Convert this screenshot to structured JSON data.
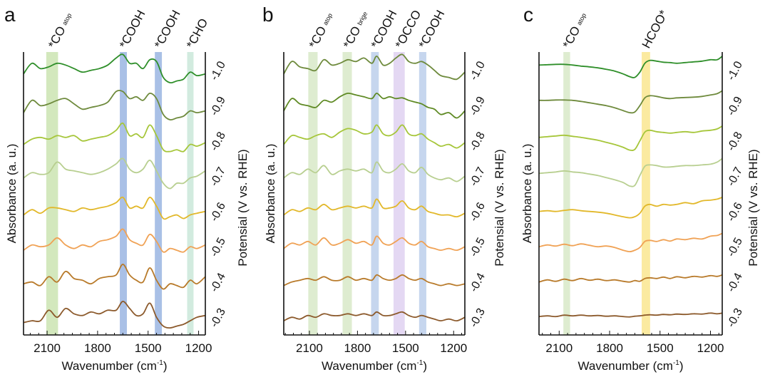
{
  "chart_data": [
    {
      "type": "line",
      "panel_letter": "a",
      "xlabel": "Wavenumber (cm",
      "xlabel_sup": "-1",
      "xlabel_end": ")",
      "ylabel": "Absorbance (a. u.)",
      "right_label": "Potensial (V vs. RHE)",
      "xlim": [
        2240,
        1160
      ],
      "xticks": [
        "2100",
        "1800",
        "1500",
        "1200"
      ],
      "bands": [
        {
          "label": "*CO",
          "sub": "atop",
          "center": 2070,
          "width": 70,
          "color": "#d3e8bd"
        },
        {
          "label": "*COOH",
          "sub": "",
          "center": 1647,
          "width": 42,
          "color": "#a9c0e6"
        },
        {
          "label": "*COOH",
          "sub": "",
          "center": 1439,
          "width": 42,
          "color": "#a9c0e6"
        },
        {
          "label": "*CHO",
          "sub": "",
          "center": 1249,
          "width": 38,
          "color": "#d2ebdf"
        }
      ],
      "x": [
        2240,
        2190,
        2140,
        2090,
        2040,
        1990,
        1940,
        1890,
        1840,
        1790,
        1740,
        1690,
        1650,
        1610,
        1570,
        1530,
        1490,
        1450,
        1410,
        1370,
        1330,
        1290,
        1250,
        1210,
        1160
      ],
      "series": [
        {
          "name": "-1.0",
          "color": "#2f8f2a",
          "values": [
            0.3,
            0.6,
            0.45,
            0.5,
            0.6,
            0.55,
            0.45,
            0.35,
            0.4,
            0.45,
            0.55,
            0.75,
            0.85,
            0.6,
            0.6,
            0.45,
            0.7,
            0.65,
            0.2,
            0.05,
            0.1,
            0.15,
            0.35,
            0.25,
            0.3
          ]
        },
        {
          "name": "-0.9",
          "color": "#6e8a3c",
          "values": [
            0.2,
            0.55,
            0.4,
            0.45,
            0.55,
            0.6,
            0.45,
            0.3,
            0.35,
            0.4,
            0.5,
            0.8,
            0.8,
            0.6,
            0.65,
            0.55,
            0.75,
            0.6,
            0.15,
            0.0,
            0.05,
            0.1,
            0.25,
            0.2,
            0.25
          ]
        },
        {
          "name": "-0.8",
          "color": "#a6c63a",
          "values": [
            0.3,
            0.45,
            0.5,
            0.45,
            0.55,
            0.5,
            0.55,
            0.4,
            0.45,
            0.5,
            0.55,
            0.7,
            0.9,
            0.55,
            0.6,
            0.5,
            0.85,
            0.55,
            0.15,
            0.1,
            0.15,
            0.1,
            0.3,
            0.25,
            0.35
          ]
        },
        {
          "name": "-0.7",
          "color": "#b8cf90",
          "values": [
            0.35,
            0.5,
            0.45,
            0.5,
            0.8,
            0.6,
            0.55,
            0.5,
            0.45,
            0.5,
            0.6,
            0.75,
            0.9,
            0.6,
            0.5,
            0.6,
            0.85,
            0.55,
            0.2,
            0.05,
            0.2,
            0.2,
            0.35,
            0.4,
            0.55
          ]
        },
        {
          "name": "-0.6",
          "color": "#e2b82a",
          "values": [
            0.3,
            0.45,
            0.35,
            0.5,
            0.5,
            0.45,
            0.4,
            0.5,
            0.45,
            0.5,
            0.55,
            0.65,
            0.8,
            0.5,
            0.55,
            0.5,
            0.8,
            0.55,
            0.2,
            0.25,
            0.3,
            0.2,
            0.3,
            0.35,
            0.4
          ]
        },
        {
          "name": "-0.5",
          "color": "#f0a255",
          "values": [
            0.3,
            0.45,
            0.4,
            0.45,
            0.65,
            0.45,
            0.35,
            0.45,
            0.4,
            0.55,
            0.6,
            0.7,
            0.9,
            0.6,
            0.5,
            0.45,
            0.75,
            0.55,
            0.25,
            0.35,
            0.3,
            0.25,
            0.4,
            0.35,
            0.45
          ]
        },
        {
          "name": "-0.4",
          "color": "#b87a2a",
          "values": [
            0.35,
            0.4,
            0.3,
            0.55,
            0.4,
            0.7,
            0.5,
            0.45,
            0.35,
            0.5,
            0.55,
            0.6,
            0.9,
            0.6,
            0.45,
            0.4,
            0.8,
            0.45,
            0.2,
            0.35,
            0.3,
            0.25,
            0.45,
            0.35,
            0.55
          ]
        },
        {
          "name": "-0.3",
          "color": "#8c5a2c",
          "values": [
            0.25,
            0.3,
            0.3,
            0.6,
            0.4,
            0.65,
            0.5,
            0.45,
            0.55,
            0.5,
            0.6,
            0.6,
            0.85,
            0.65,
            0.45,
            0.5,
            0.8,
            0.4,
            0.15,
            0.1,
            0.15,
            0.2,
            0.3,
            0.4,
            0.45
          ]
        }
      ]
    },
    {
      "type": "line",
      "panel_letter": "b",
      "xlabel": "Wavenumber (cm",
      "xlabel_sup": "-1",
      "xlabel_end": ")",
      "ylabel": "Absorbance (a. u.)",
      "right_label": "Potensial (V vs. RHE)",
      "xlim": [
        2260,
        1130
      ],
      "xticks": [
        "2100",
        "1800",
        "1500",
        "1200"
      ],
      "bands": [
        {
          "label": "*CO",
          "sub": "atop",
          "center": 2078,
          "width": 58,
          "color": "#deecd0"
        },
        {
          "label": "*CO",
          "sub": "brige",
          "center": 1864,
          "width": 58,
          "color": "#deecd0"
        },
        {
          "label": "*COOH",
          "sub": "",
          "center": 1691,
          "width": 48,
          "color": "#c6d6ee"
        },
        {
          "label": "*OCCO",
          "sub": "",
          "center": 1540,
          "width": 70,
          "color": "#e4d8f3"
        },
        {
          "label": "*COOH",
          "sub": "",
          "center": 1393,
          "width": 45,
          "color": "#c6d6ee"
        }
      ],
      "x": [
        2260,
        2210,
        2160,
        2110,
        2060,
        2010,
        1960,
        1910,
        1860,
        1810,
        1760,
        1710,
        1680,
        1640,
        1600,
        1560,
        1520,
        1480,
        1440,
        1400,
        1360,
        1320,
        1280,
        1230,
        1180,
        1130
      ],
      "series": [
        {
          "name": "-1.0",
          "color": "#6e8a3c",
          "values": [
            0.3,
            0.65,
            0.5,
            0.45,
            0.4,
            0.7,
            0.55,
            0.6,
            0.7,
            0.65,
            0.75,
            0.6,
            0.8,
            0.55,
            0.6,
            0.75,
            0.85,
            0.65,
            0.6,
            0.65,
            0.55,
            0.4,
            0.25,
            0.2,
            0.15,
            0.35
          ]
        },
        {
          "name": "-0.9",
          "color": "#5f8a24",
          "values": [
            0.25,
            0.6,
            0.45,
            0.4,
            0.35,
            0.55,
            0.5,
            0.65,
            0.75,
            0.7,
            0.65,
            0.6,
            0.75,
            0.6,
            0.65,
            0.6,
            0.62,
            0.55,
            0.5,
            0.45,
            0.35,
            0.3,
            0.15,
            0.2,
            0.05,
            0.25
          ]
        },
        {
          "name": "-0.8",
          "color": "#a6c63a",
          "values": [
            0.3,
            0.55,
            0.5,
            0.45,
            0.55,
            0.6,
            0.5,
            0.65,
            0.75,
            0.7,
            0.6,
            0.65,
            0.85,
            0.6,
            0.55,
            0.65,
            0.85,
            0.6,
            0.55,
            0.6,
            0.45,
            0.35,
            0.25,
            0.3,
            0.2,
            0.35
          ]
        },
        {
          "name": "-0.7",
          "color": "#b8cf90",
          "values": [
            0.35,
            0.5,
            0.45,
            0.6,
            0.5,
            0.7,
            0.45,
            0.55,
            0.6,
            0.55,
            0.6,
            0.5,
            0.8,
            0.55,
            0.5,
            0.6,
            0.75,
            0.55,
            0.5,
            0.65,
            0.45,
            0.35,
            0.3,
            0.35,
            0.25,
            0.4
          ]
        },
        {
          "name": "-0.6",
          "color": "#e2b82a",
          "values": [
            0.3,
            0.45,
            0.4,
            0.5,
            0.45,
            0.6,
            0.45,
            0.5,
            0.55,
            0.5,
            0.55,
            0.5,
            0.75,
            0.5,
            0.5,
            0.55,
            0.7,
            0.5,
            0.45,
            0.55,
            0.4,
            0.35,
            0.3,
            0.3,
            0.25,
            0.35
          ]
        },
        {
          "name": "-0.5",
          "color": "#f0a255",
          "values": [
            0.35,
            0.5,
            0.45,
            0.55,
            0.45,
            0.65,
            0.45,
            0.5,
            0.6,
            0.5,
            0.55,
            0.45,
            0.7,
            0.5,
            0.45,
            0.55,
            0.65,
            0.5,
            0.45,
            0.55,
            0.4,
            0.35,
            0.3,
            0.35,
            0.3,
            0.4
          ]
        },
        {
          "name": "-0.4",
          "color": "#b87a2a",
          "values": [
            0.3,
            0.4,
            0.45,
            0.5,
            0.45,
            0.55,
            0.45,
            0.45,
            0.55,
            0.45,
            0.5,
            0.45,
            0.6,
            0.5,
            0.45,
            0.5,
            0.6,
            0.5,
            0.45,
            0.5,
            0.4,
            0.35,
            0.3,
            0.35,
            0.3,
            0.35
          ]
        },
        {
          "name": "-0.3",
          "color": "#8c5a2c",
          "values": [
            0.3,
            0.4,
            0.35,
            0.45,
            0.4,
            0.5,
            0.45,
            0.45,
            0.5,
            0.45,
            0.5,
            0.45,
            0.55,
            0.45,
            0.45,
            0.5,
            0.55,
            0.45,
            0.4,
            0.45,
            0.4,
            0.35,
            0.3,
            0.35,
            0.3,
            0.4
          ]
        }
      ]
    },
    {
      "type": "line",
      "panel_letter": "c",
      "xlabel": "Wavenumber (cm",
      "xlabel_sup": "-1",
      "xlabel_end": ")",
      "ylabel": "Absorbance (a. u.)",
      "right_label": "Potensial (V vs. RHE)",
      "xlim": [
        2220,
        1130
      ],
      "xticks": [
        "2100",
        "1800",
        "1500",
        "1200"
      ],
      "bands": [
        {
          "label": "*CO",
          "sub": "atop",
          "center": 2055,
          "width": 40,
          "color": "#deecd0"
        },
        {
          "label": "HCOO*",
          "sub": "",
          "center": 1584,
          "width": 50,
          "color": "#fbeaa0"
        }
      ],
      "x": [
        2220,
        2170,
        2120,
        2070,
        2020,
        1970,
        1920,
        1870,
        1820,
        1770,
        1720,
        1680,
        1650,
        1620,
        1590,
        1560,
        1520,
        1480,
        1440,
        1400,
        1350,
        1300,
        1250,
        1200,
        1160,
        1130
      ],
      "series": [
        {
          "name": "-1.0",
          "color": "#2f8f2a",
          "values": [
            0.55,
            0.56,
            0.57,
            0.57,
            0.55,
            0.52,
            0.5,
            0.47,
            0.43,
            0.38,
            0.3,
            0.22,
            0.2,
            0.35,
            0.6,
            0.68,
            0.66,
            0.63,
            0.62,
            0.6,
            0.62,
            0.64,
            0.66,
            0.7,
            0.7,
            0.8
          ]
        },
        {
          "name": "-0.9",
          "color": "#6e8a3c",
          "values": [
            0.55,
            0.55,
            0.56,
            0.56,
            0.55,
            0.52,
            0.48,
            0.44,
            0.4,
            0.34,
            0.26,
            0.2,
            0.22,
            0.4,
            0.62,
            0.68,
            0.66,
            0.62,
            0.6,
            0.62,
            0.63,
            0.64,
            0.66,
            0.7,
            0.74,
            0.82
          ]
        },
        {
          "name": "-0.8",
          "color": "#a6c63a",
          "values": [
            0.5,
            0.52,
            0.54,
            0.56,
            0.53,
            0.5,
            0.46,
            0.42,
            0.36,
            0.3,
            0.22,
            0.14,
            0.16,
            0.4,
            0.65,
            0.7,
            0.66,
            0.64,
            0.62,
            0.64,
            0.66,
            0.64,
            0.68,
            0.7,
            0.74,
            0.82
          ]
        },
        {
          "name": "-0.7",
          "color": "#b8cf90",
          "values": [
            0.48,
            0.5,
            0.52,
            0.55,
            0.52,
            0.5,
            0.46,
            0.42,
            0.36,
            0.3,
            0.22,
            0.12,
            0.14,
            0.42,
            0.68,
            0.72,
            0.7,
            0.66,
            0.66,
            0.68,
            0.7,
            0.7,
            0.72,
            0.74,
            0.8,
            0.9
          ]
        },
        {
          "name": "-0.6",
          "color": "#e2b82a",
          "values": [
            0.4,
            0.42,
            0.4,
            0.43,
            0.45,
            0.42,
            0.4,
            0.38,
            0.35,
            0.3,
            0.25,
            0.22,
            0.25,
            0.35,
            0.55,
            0.6,
            0.55,
            0.6,
            0.58,
            0.6,
            0.65,
            0.62,
            0.7,
            0.72,
            0.75,
            0.8
          ]
        },
        {
          "name": "-0.5",
          "color": "#f0a255",
          "values": [
            0.4,
            0.45,
            0.42,
            0.47,
            0.43,
            0.48,
            0.44,
            0.4,
            0.42,
            0.38,
            0.3,
            0.26,
            0.3,
            0.38,
            0.55,
            0.58,
            0.55,
            0.6,
            0.56,
            0.62,
            0.6,
            0.64,
            0.62,
            0.7,
            0.72,
            0.78
          ]
        },
        {
          "name": "-0.4",
          "color": "#b87a2a",
          "values": [
            0.4,
            0.46,
            0.42,
            0.48,
            0.44,
            0.5,
            0.45,
            0.48,
            0.44,
            0.46,
            0.42,
            0.4,
            0.44,
            0.42,
            0.5,
            0.52,
            0.5,
            0.54,
            0.5,
            0.55,
            0.52,
            0.56,
            0.54,
            0.58,
            0.56,
            0.6
          ]
        },
        {
          "name": "-0.3",
          "color": "#8c5a2c",
          "values": [
            0.42,
            0.44,
            0.42,
            0.46,
            0.44,
            0.46,
            0.44,
            0.45,
            0.43,
            0.44,
            0.42,
            0.41,
            0.43,
            0.44,
            0.46,
            0.47,
            0.46,
            0.48,
            0.47,
            0.49,
            0.48,
            0.5,
            0.49,
            0.52,
            0.5,
            0.52
          ]
        }
      ]
    }
  ]
}
